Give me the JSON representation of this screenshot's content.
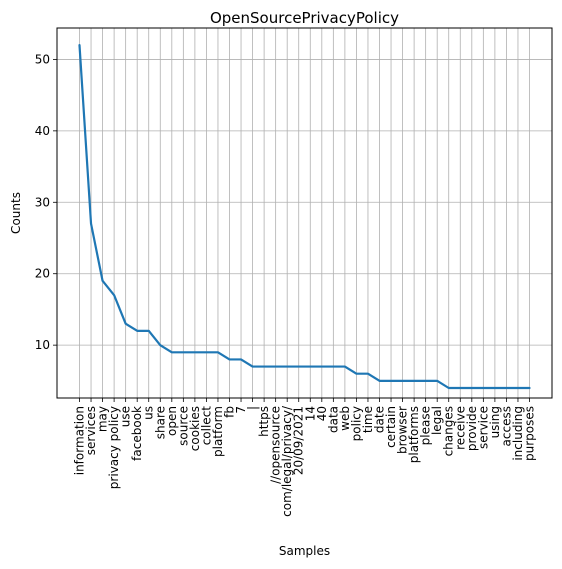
{
  "chart_data": {
    "type": "line",
    "title": "OpenSourcePrivacyPolicy",
    "xlabel": "Samples",
    "ylabel": "Counts",
    "categories": [
      "information",
      "services",
      "may",
      "privacy policy",
      "use",
      "facebook",
      "us",
      "share",
      "open",
      "source",
      "cookies",
      "collect",
      "platform",
      "fb",
      "7",
      "|",
      "https",
      "//opensource",
      "com/legal/privacy/",
      "20/09/2021",
      "14",
      "40",
      "data",
      "web",
      "policy",
      "time",
      "date",
      "certain",
      "browser",
      "platforms",
      "please",
      "legal",
      "changes",
      "receive",
      "provide",
      "service",
      "using",
      "access",
      "including",
      "purposes"
    ],
    "values": [
      52,
      27,
      19,
      17,
      13,
      12,
      12,
      10,
      9,
      9,
      9,
      9,
      9,
      8,
      8,
      7,
      7,
      7,
      7,
      7,
      7,
      7,
      7,
      7,
      6,
      6,
      5,
      5,
      5,
      5,
      5,
      5,
      4,
      4,
      4,
      4,
      4,
      4,
      4,
      4
    ],
    "yticks": [
      10,
      20,
      30,
      40,
      50
    ],
    "ylim": [
      2.6,
      54.4
    ],
    "grid": true,
    "line_color": "#1f77b4"
  }
}
